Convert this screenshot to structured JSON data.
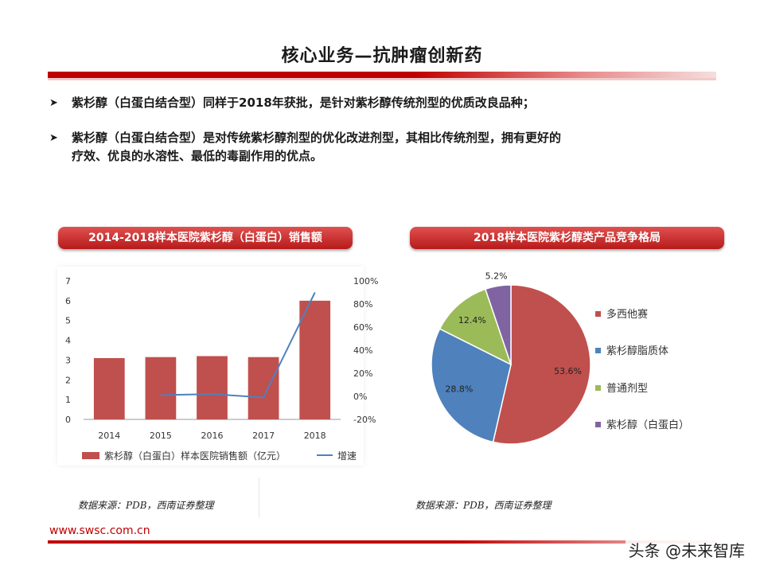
{
  "title": "核心业务—抗肿瘤创新药",
  "bullets": [
    {
      "icon": "arrow-bullet-icon",
      "text": "紫杉醇（白蛋白结合型）同样于2018年获批，是针对紫杉醇传统剂型的优质改良品种；"
    },
    {
      "icon": "arrow-bullet-icon",
      "line1": "紫杉醇（白蛋白结合型）是对传统紫杉醇剂型的优化改进剂型，其相比传统剂型，拥有更好的",
      "line2": "疗效、优良的水溶性、最低的毒副作用的优点。"
    }
  ],
  "left_panel": {
    "header": "2014-2018样本医院紫杉醇（白蛋白）销售额",
    "source": "数据来源：PDB，西南证券整理"
  },
  "right_panel": {
    "header": "2018样本医院紫杉醇类产品竞争格局",
    "source": "数据来源：PDB，西南证券整理"
  },
  "footer": {
    "url": "www.swsc.com.cn",
    "watermark": "头条 @未来智库"
  },
  "colors": {
    "brand_red": "#c00000",
    "bar": "#c0504d",
    "line": "#4f81bd",
    "pie_green": "#9bbb59",
    "pie_purple": "#8064a2"
  },
  "chart_data": [
    {
      "type": "bar",
      "categories": [
        "2014",
        "2015",
        "2016",
        "2017",
        "2018"
      ],
      "series": [
        {
          "name": "紫杉醇（白蛋白）样本医院销售额（亿元）",
          "kind": "bar",
          "axis": "left",
          "values": [
            3.1,
            3.15,
            3.2,
            3.15,
            6.0
          ]
        },
        {
          "name": "增速",
          "kind": "line",
          "axis": "right",
          "values": [
            null,
            0.01,
            0.02,
            -0.01,
            0.9
          ]
        }
      ],
      "ylim": [
        0,
        7
      ],
      "yticks": [
        "0",
        "1",
        "2",
        "3",
        "4",
        "5",
        "6",
        "7"
      ],
      "y2lim": [
        -0.2,
        1.0
      ],
      "y2ticks": [
        "-20%",
        "0%",
        "20%",
        "40%",
        "60%",
        "80%",
        "100%"
      ],
      "legend_position": "bottom",
      "grid": false
    },
    {
      "type": "pie",
      "categories": [
        "多西他赛",
        "紫杉醇脂质体",
        "普通剂型",
        "紫杉醇（白蛋白）"
      ],
      "values": [
        53.6,
        28.8,
        12.4,
        5.2
      ],
      "labels": [
        "53.6%",
        "28.8%",
        "12.4%",
        "5.2%"
      ],
      "colors": [
        "#c0504d",
        "#4f81bd",
        "#9bbb59",
        "#8064a2"
      ],
      "legend_position": "right"
    }
  ]
}
